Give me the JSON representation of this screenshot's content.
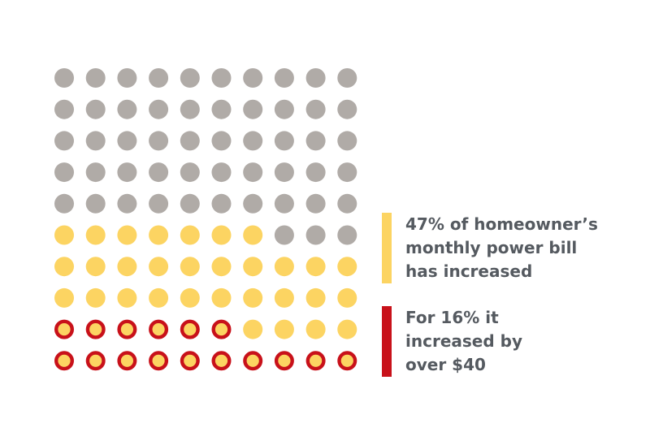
{
  "chart_data": {
    "type": "waffle",
    "grid": {
      "rows": 10,
      "cols": 10,
      "total_units": 100
    },
    "fill_order": "bottom-left upward, row-wise",
    "categories": [
      {
        "name": "increased_over_40",
        "percent": 16,
        "style": "yellow-with-red-ring"
      },
      {
        "name": "increased_other",
        "percent": 31,
        "style": "yellow"
      },
      {
        "name": "not_increased",
        "percent": 53,
        "style": "gray"
      }
    ],
    "colors": {
      "gray": "#b0aba7",
      "yellow": "#fcd462",
      "red": "#c8111a",
      "text": "#555a60"
    },
    "legend": [
      {
        "id": "increased",
        "color_key": "yellow",
        "lines": [
          "47% of homeowner’s",
          "monthly power bill",
          "has increased"
        ]
      },
      {
        "id": "over40",
        "color_key": "red",
        "lines": [
          "For 16% it",
          "increased by",
          "over $40"
        ]
      }
    ],
    "legend_placement": "right"
  }
}
